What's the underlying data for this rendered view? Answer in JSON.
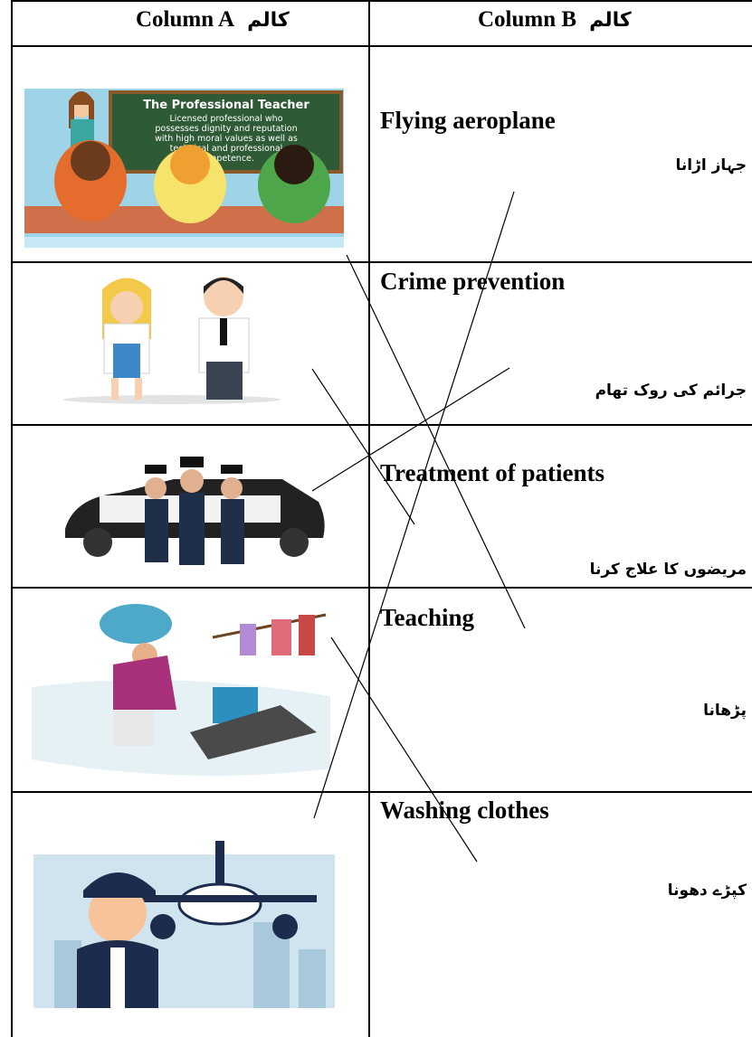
{
  "table": {
    "header": [
      {
        "label": "Column A",
        "urdu": "کالم"
      },
      {
        "label": "Column B",
        "urdu": "کالم"
      }
    ],
    "rows": [
      {
        "english": "Flying aeroplane",
        "urdu": "جہاز اڑانا"
      },
      {
        "english": "Crime prevention",
        "urdu": "جرائم کی روک تھام"
      },
      {
        "english": "Treatment of patients",
        "urdu": "مریضوں کا علاج کرنا"
      },
      {
        "english": "Teaching",
        "urdu": "پڑھانا"
      },
      {
        "english": "Washing clothes",
        "urdu": "کپڑے دھونا"
      }
    ]
  },
  "images": {
    "teacher_slide": {
      "title": "The Professional Teacher",
      "lines": [
        "Licensed professional who",
        "possesses dignity and reputation",
        "with high moral values as well as",
        "technical and professional",
        "competence."
      ]
    }
  }
}
